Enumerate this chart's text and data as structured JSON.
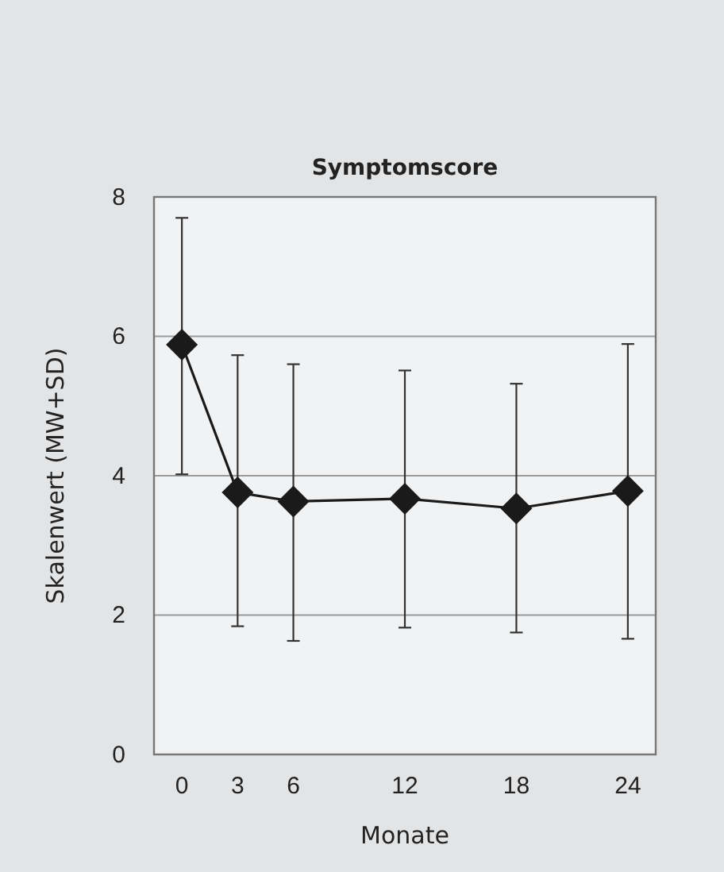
{
  "chart_data": {
    "type": "line",
    "title": "Symptomscore",
    "xlabel": "Monate",
    "ylabel": "Skalenwert (MW+SD)",
    "x": [
      0,
      3,
      6,
      12,
      18,
      24
    ],
    "series": [
      {
        "color": "#1a1a1a",
        "values": [
          5.88,
          3.76,
          3.63,
          3.67,
          3.53,
          3.78
        ],
        "errors": [
          [
            4.02,
            7.7
          ],
          [
            1.84,
            5.73
          ],
          [
            1.63,
            5.6
          ],
          [
            1.82,
            5.51
          ],
          [
            1.75,
            5.32
          ],
          [
            1.66,
            5.89
          ]
        ]
      }
    ],
    "xlim": [
      -1.5,
      25.5
    ],
    "xticks": [
      0,
      3,
      6,
      12,
      18,
      24
    ],
    "ylim": [
      0,
      8
    ],
    "yticks": [
      0,
      2,
      4,
      6,
      8
    ],
    "grid": "y",
    "marker": "diamond",
    "line_style": "solid"
  }
}
